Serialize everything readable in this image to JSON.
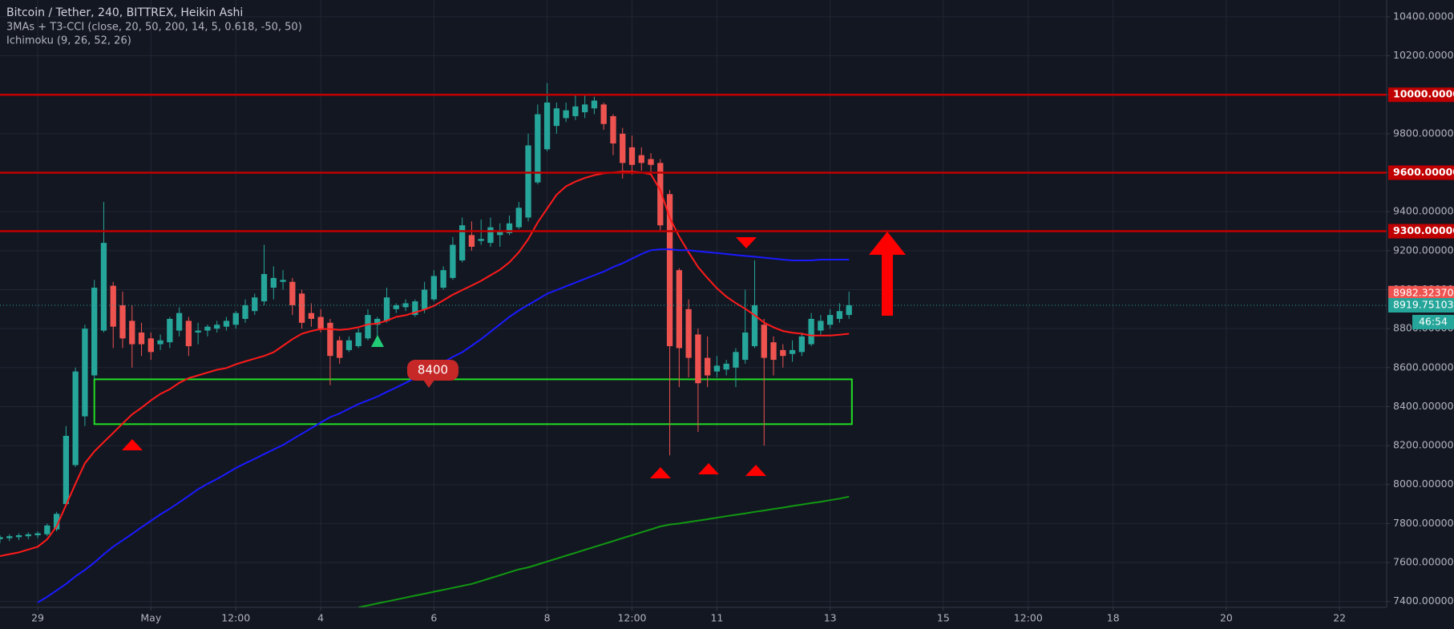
{
  "chart_data": {
    "type": "candlestick",
    "title": "Bitcoin / Tether, 240, BITTREX, Heikin Ashi",
    "indicators": [
      "3MAs + T3-CCI (close, 20, 50, 200, 14, 5, 0.618, -50, 50)",
      "Ichimoku (9, 26, 52, 26)"
    ],
    "up_color": "#26a69a",
    "down_color": "#ef5350",
    "open": [
      7720,
      7725,
      7730,
      7735,
      7740,
      7745,
      7770,
      7900,
      8100,
      8350,
      8560,
      8790,
      9020,
      8920,
      8840,
      8780,
      8750,
      8720,
      8730,
      8790,
      8840,
      8780,
      8790,
      8800,
      8810,
      8820,
      8850,
      8890,
      8940,
      9010,
      9040,
      9040,
      8980,
      8880,
      8860,
      8830,
      8740,
      8690,
      8710,
      8750,
      8820,
      8840,
      8900,
      8910,
      8870,
      8900,
      8950,
      9010,
      9060,
      9150,
      9280,
      9250,
      9240,
      9280,
      9290,
      9320,
      9370,
      9550,
      9720,
      9840,
      9880,
      9890,
      9910,
      9930,
      9950,
      9890,
      9800,
      9730,
      9690,
      9670,
      9650,
      9490,
      9100,
      8900,
      8770,
      8650,
      8580,
      8590,
      8600,
      8640,
      8710,
      8820,
      8730,
      8690,
      8670,
      8680,
      8720,
      8790,
      8820,
      8850,
      8870
    ],
    "high": [
      7740,
      7745,
      7750,
      7755,
      7760,
      7800,
      7860,
      8300,
      8600,
      8820,
      9050,
      9450,
      9040,
      8990,
      8920,
      8830,
      8780,
      8770,
      8860,
      8910,
      8860,
      8830,
      8820,
      8840,
      8860,
      8890,
      8950,
      8980,
      9230,
      9120,
      9100,
      9060,
      9000,
      8930,
      8900,
      8850,
      8760,
      8760,
      8800,
      8900,
      8860,
      9010,
      8930,
      8950,
      8950,
      9040,
      9100,
      9120,
      9270,
      9370,
      9350,
      9360,
      9370,
      9340,
      9380,
      9450,
      9800,
      9950,
      10060,
      9960,
      9960,
      10000,
      10000,
      9990,
      9960,
      9900,
      9830,
      9790,
      9730,
      9700,
      9670,
      9510,
      9110,
      8950,
      8800,
      8760,
      8660,
      8640,
      8700,
      9000,
      9150,
      8850,
      8760,
      8720,
      8740,
      8780,
      8880,
      8870,
      8900,
      8930,
      8990
    ],
    "low": [
      7700,
      7710,
      7715,
      7720,
      7725,
      7735,
      7760,
      7890,
      8090,
      8300,
      8540,
      8780,
      8700,
      8700,
      8600,
      8660,
      8640,
      8690,
      8700,
      8760,
      8660,
      8720,
      8760,
      8780,
      8790,
      8800,
      8830,
      8870,
      8920,
      8950,
      9000,
      8870,
      8800,
      8810,
      8780,
      8510,
      8620,
      8680,
      8700,
      8740,
      8760,
      8830,
      8880,
      8890,
      8860,
      8880,
      8940,
      9000,
      9050,
      9140,
      9200,
      9230,
      9220,
      9220,
      9280,
      9310,
      9350,
      9540,
      9710,
      9800,
      9860,
      9870,
      9880,
      9900,
      9820,
      9690,
      9570,
      9590,
      9610,
      9600,
      9300,
      8150,
      8500,
      8550,
      8270,
      8500,
      8550,
      8560,
      8500,
      8620,
      8700,
      8200,
      8560,
      8600,
      8630,
      8660,
      8710,
      8770,
      8800,
      8830,
      8850
    ],
    "close": [
      7730,
      7735,
      7740,
      7745,
      7750,
      7790,
      7850,
      8250,
      8580,
      8800,
      9010,
      9240,
      8810,
      8750,
      8720,
      8720,
      8680,
      8740,
      8850,
      8880,
      8710,
      8790,
      8810,
      8820,
      8840,
      8880,
      8920,
      8960,
      9080,
      9060,
      9050,
      8920,
      8830,
      8850,
      8800,
      8660,
      8650,
      8740,
      8780,
      8870,
      8850,
      8960,
      8920,
      8930,
      8940,
      9000,
      9070,
      9100,
      9230,
      9330,
      9220,
      9260,
      9320,
      9300,
      9340,
      9420,
      9740,
      9900,
      9960,
      9930,
      9920,
      9940,
      9950,
      9970,
      9850,
      9750,
      9650,
      9640,
      9650,
      9640,
      9330,
      8710,
      8700,
      8650,
      8520,
      8560,
      8610,
      8620,
      8680,
      8780,
      8920,
      8650,
      8640,
      8660,
      8690,
      8760,
      8850,
      8840,
      8870,
      8890,
      8920
    ],
    "lines": [
      {
        "color": "#ff1a1a",
        "values": [
          7633,
          7643,
          7652,
          7667,
          7681,
          7719,
          7785,
          7895,
          8004,
          8109,
          8170,
          8218,
          8265,
          8313,
          8360,
          8394,
          8432,
          8465,
          8489,
          8522,
          8546,
          8560,
          8575,
          8589,
          8598,
          8617,
          8632,
          8646,
          8660,
          8679,
          8712,
          8746,
          8774,
          8788,
          8798,
          8798,
          8793,
          8798,
          8807,
          8822,
          8826,
          8841,
          8860,
          8869,
          8883,
          8898,
          8917,
          8945,
          8974,
          8998,
          9021,
          9045,
          9074,
          9102,
          9140,
          9192,
          9259,
          9345,
          9416,
          9487,
          9530,
          9554,
          9573,
          9587,
          9597,
          9601,
          9606,
          9606,
          9601,
          9592,
          9511,
          9368,
          9273,
          9192,
          9116,
          9059,
          9007,
          8964,
          8931,
          8902,
          8869,
          8831,
          8807,
          8788,
          8779,
          8774,
          8765,
          8765,
          8765,
          8769,
          8774
        ]
      },
      {
        "color": "#1a1aff",
        "values": [
          null,
          null,
          null,
          null,
          7395,
          7424,
          7457,
          7490,
          7529,
          7562,
          7600,
          7643,
          7681,
          7714,
          7747,
          7781,
          7814,
          7847,
          7876,
          7909,
          7942,
          7976,
          8004,
          8028,
          8056,
          8085,
          8109,
          8132,
          8156,
          8180,
          8203,
          8232,
          8261,
          8289,
          8318,
          8346,
          8365,
          8389,
          8413,
          8432,
          8451,
          8475,
          8498,
          8522,
          8546,
          8574,
          8598,
          8627,
          8655,
          8679,
          8712,
          8746,
          8784,
          8822,
          8860,
          8893,
          8922,
          8950,
          8979,
          8998,
          9017,
          9036,
          9055,
          9074,
          9093,
          9116,
          9135,
          9159,
          9183,
          9202,
          9207,
          9207,
          9202,
          9202,
          9197,
          9192,
          9188,
          9183,
          9178,
          9173,
          9169,
          9164,
          9159,
          9154,
          9150,
          9150,
          9150,
          9154,
          9154,
          9154,
          9154
        ]
      },
      {
        "color": "#119911",
        "values": [
          null,
          null,
          null,
          null,
          null,
          null,
          null,
          null,
          null,
          null,
          null,
          null,
          null,
          null,
          null,
          null,
          null,
          null,
          null,
          null,
          null,
          null,
          null,
          null,
          null,
          null,
          null,
          null,
          null,
          null,
          null,
          null,
          null,
          null,
          null,
          null,
          null,
          null,
          7370,
          7380,
          7390,
          7400,
          7410,
          7420,
          7430,
          7440,
          7450,
          7460,
          7470,
          7480,
          7490,
          7505,
          7520,
          7535,
          7550,
          7565,
          7575,
          7590,
          7605,
          7620,
          7635,
          7650,
          7665,
          7680,
          7695,
          7710,
          7725,
          7740,
          7755,
          7770,
          7785,
          7795,
          7800,
          7808,
          7815,
          7822,
          7830,
          7838,
          7845,
          7852,
          7860,
          7867,
          7875,
          7882,
          7890,
          7897,
          7905,
          7912,
          7920,
          7928,
          7938
        ]
      }
    ],
    "levels": [
      {
        "value": 10000,
        "label": "10000.00000"
      },
      {
        "value": 9600,
        "label": "9600.00000"
      },
      {
        "value": 9300,
        "label": "9300.00000"
      }
    ],
    "level_color": "#c00000",
    "zone": {
      "low": 8310,
      "high": 8540,
      "color": "#22dd22"
    },
    "annotation": "8400",
    "marker_price": {
      "value": 8982.3237,
      "label": "8982.32370"
    },
    "last_price": {
      "value": 8919.75103,
      "label": "8919.75103"
    },
    "countdown": "46:54",
    "xlim": [
      0,
      147
    ],
    "xticks": [
      {
        "value": 4,
        "label": "29"
      },
      {
        "value": 16,
        "label": "May"
      },
      {
        "value": 25,
        "label": "12:00"
      },
      {
        "value": 34,
        "label": "4"
      },
      {
        "value": 46,
        "label": "6"
      },
      {
        "value": 58,
        "label": "8"
      },
      {
        "value": 67,
        "label": "12:00"
      },
      {
        "value": 76,
        "label": "11"
      },
      {
        "value": 88,
        "label": "13"
      },
      {
        "value": 100,
        "label": "15"
      },
      {
        "value": 109,
        "label": "12:00"
      },
      {
        "value": 118,
        "label": "18"
      },
      {
        "value": 130,
        "label": "20"
      },
      {
        "value": 142,
        "label": "22"
      }
    ],
    "ylim": [
      7370,
      10486
    ],
    "yticks": [
      {
        "value": 7400,
        "label": "7400.00000"
      },
      {
        "value": 7600,
        "label": "7600.00000"
      },
      {
        "value": 7800,
        "label": "7800.00000"
      },
      {
        "value": 8000,
        "label": "8000.00000"
      },
      {
        "value": 8200,
        "label": "8200.00000"
      },
      {
        "value": 8400,
        "label": "8400.00000"
      },
      {
        "value": 8600,
        "label": "8600.00000"
      },
      {
        "value": 8800,
        "label": "8800.00000"
      },
      {
        "value": 9000,
        "label": "9000.00000"
      },
      {
        "value": 9200,
        "label": "9200.00000"
      },
      {
        "value": 9400,
        "label": "9400.00000"
      },
      {
        "value": 9600,
        "label": "9600.00000"
      },
      {
        "value": 9800,
        "label": "9800.00000"
      },
      {
        "value": 10000,
        "label": "10000.00000"
      },
      {
        "value": 10200,
        "label": "10200.00000"
      },
      {
        "value": 10400,
        "label": "10400.00000"
      }
    ],
    "grid": true
  }
}
